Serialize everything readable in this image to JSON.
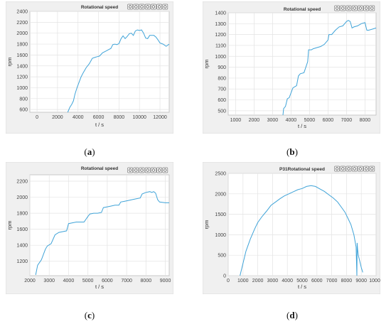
{
  "chart_data": [
    {
      "id": "a",
      "caption_letter": "a",
      "type": "line",
      "title": "Rotational speed",
      "xlabel": "t / s",
      "ylabel": "rpm",
      "xlim": [
        -700,
        12900
      ],
      "ylim": [
        550,
        2400
      ],
      "xticks": [
        0,
        2000,
        4000,
        6000,
        8000,
        10000,
        12000
      ],
      "yticks": [
        600,
        800,
        1000,
        1200,
        1400,
        1600,
        1800,
        2000,
        2200,
        2400
      ],
      "grid": true,
      "line_color": "#3fa3d8",
      "series": [
        {
          "x": [
            3000,
            3200,
            3400,
            3550,
            3700,
            3900,
            4100,
            4300,
            4500,
            4800,
            5100,
            5400,
            5700,
            5900,
            6100,
            6400,
            6600,
            6800,
            7000,
            7200,
            7400,
            7600,
            7800,
            8000,
            8200,
            8400,
            8600,
            8800,
            9000,
            9200,
            9400,
            9600,
            9800,
            10000,
            10200,
            10400,
            10600,
            10800,
            11000,
            11200,
            11400,
            11600,
            11800,
            12000,
            12300,
            12600,
            12900
          ],
          "y": [
            550,
            640,
            700,
            760,
            880,
            1000,
            1100,
            1200,
            1270,
            1370,
            1440,
            1540,
            1560,
            1570,
            1580,
            1640,
            1660,
            1680,
            1700,
            1720,
            1790,
            1800,
            1790,
            1810,
            1900,
            1950,
            1900,
            1940,
            1990,
            2000,
            1960,
            2040,
            2060,
            2050,
            2060,
            2000,
            1910,
            1900,
            1960,
            1960,
            1960,
            1930,
            1880,
            1820,
            1800,
            1760,
            1800
          ]
        }
      ]
    },
    {
      "id": "b",
      "caption_letter": "b",
      "type": "line",
      "title": "Rotational speed",
      "xlabel": "t / s",
      "ylabel": "rpm",
      "xlim": [
        600,
        8600
      ],
      "ylim": [
        460,
        1400
      ],
      "xticks": [
        1000,
        2000,
        3000,
        4000,
        5000,
        6000,
        7000,
        8000
      ],
      "yticks": [
        500,
        600,
        700,
        800,
        900,
        1000,
        1100,
        1200,
        1300,
        1400
      ],
      "grid": true,
      "line_color": "#3fa3d8",
      "series": [
        {
          "x": [
            3560,
            3600,
            3700,
            3800,
            3900,
            4100,
            4300,
            4400,
            4500,
            4700,
            4900,
            4950,
            5100,
            5200,
            5400,
            5600,
            5800,
            6000,
            6050,
            6200,
            6400,
            6600,
            6800,
            7000,
            7100,
            7200,
            7300,
            7400,
            7600,
            7800,
            8000,
            8100,
            8200,
            8400,
            8600
          ],
          "y": [
            460,
            520,
            540,
            610,
            620,
            710,
            730,
            820,
            840,
            850,
            950,
            1060,
            1060,
            1070,
            1080,
            1090,
            1110,
            1150,
            1200,
            1200,
            1240,
            1270,
            1280,
            1320,
            1330,
            1320,
            1260,
            1270,
            1280,
            1300,
            1310,
            1240,
            1240,
            1250,
            1260
          ]
        }
      ]
    },
    {
      "id": "c",
      "caption_letter": "c",
      "type": "line",
      "title": "Rotational speed",
      "xlabel": "t / s",
      "ylabel": "rpm",
      "xlim": [
        2000,
        9200
      ],
      "ylim": [
        1020,
        2280
      ],
      "xticks": [
        2000,
        3000,
        4000,
        5000,
        6000,
        7000,
        8000,
        9000
      ],
      "yticks": [
        1200,
        1400,
        1600,
        1800,
        2000,
        2200
      ],
      "grid": true,
      "line_color": "#3fa3d8",
      "series": [
        {
          "x": [
            2300,
            2400,
            2600,
            2800,
            2900,
            3100,
            3300,
            3500,
            3700,
            3900,
            4000,
            4200,
            4400,
            4600,
            4800,
            5000,
            5100,
            5300,
            5500,
            5700,
            5800,
            6000,
            6200,
            6400,
            6600,
            6700,
            6900,
            7100,
            7300,
            7500,
            7700,
            7800,
            8000,
            8200,
            8300,
            8400,
            8500,
            8600,
            8700,
            9000,
            9200
          ],
          "y": [
            1030,
            1150,
            1220,
            1350,
            1390,
            1420,
            1530,
            1560,
            1570,
            1580,
            1670,
            1680,
            1690,
            1690,
            1690,
            1760,
            1790,
            1800,
            1800,
            1810,
            1870,
            1880,
            1890,
            1900,
            1900,
            1940,
            1950,
            1960,
            1970,
            1980,
            1990,
            2040,
            2060,
            2070,
            2060,
            2070,
            2050,
            1970,
            1940,
            1930,
            1930
          ]
        }
      ]
    },
    {
      "id": "d",
      "caption_letter": "d",
      "type": "line",
      "title": "P31Rotational speed",
      "xlabel": "t / s",
      "ylabel": "rpm",
      "xlim": [
        0,
        10000
      ],
      "ylim": [
        0,
        2500
      ],
      "xticks": [
        0,
        1000,
        2000,
        3000,
        4000,
        5000,
        6000,
        7000,
        8000,
        9000,
        10000
      ],
      "yticks": [
        0,
        500,
        1000,
        1500,
        2000,
        2500
      ],
      "grid": true,
      "line_color": "#3fa3d8",
      "series": [
        {
          "x": [
            800,
            1000,
            1200,
            1500,
            1800,
            2000,
            2300,
            2600,
            2900,
            3200,
            3500,
            3800,
            4100,
            4400,
            4700,
            5000,
            5300,
            5600,
            5900,
            6200,
            6500,
            6800,
            7100,
            7400,
            7700,
            7900,
            8100,
            8300,
            8500,
            8650,
            8700,
            8720,
            8750,
            8800,
            8900,
            9000,
            9100
          ],
          "y": [
            0,
            300,
            600,
            900,
            1150,
            1300,
            1450,
            1580,
            1720,
            1800,
            1880,
            1950,
            2000,
            2050,
            2100,
            2130,
            2180,
            2200,
            2180,
            2120,
            2060,
            1980,
            1900,
            1800,
            1650,
            1550,
            1400,
            1250,
            1000,
            700,
            0,
            800,
            650,
            500,
            350,
            200,
            80
          ]
        }
      ]
    }
  ]
}
